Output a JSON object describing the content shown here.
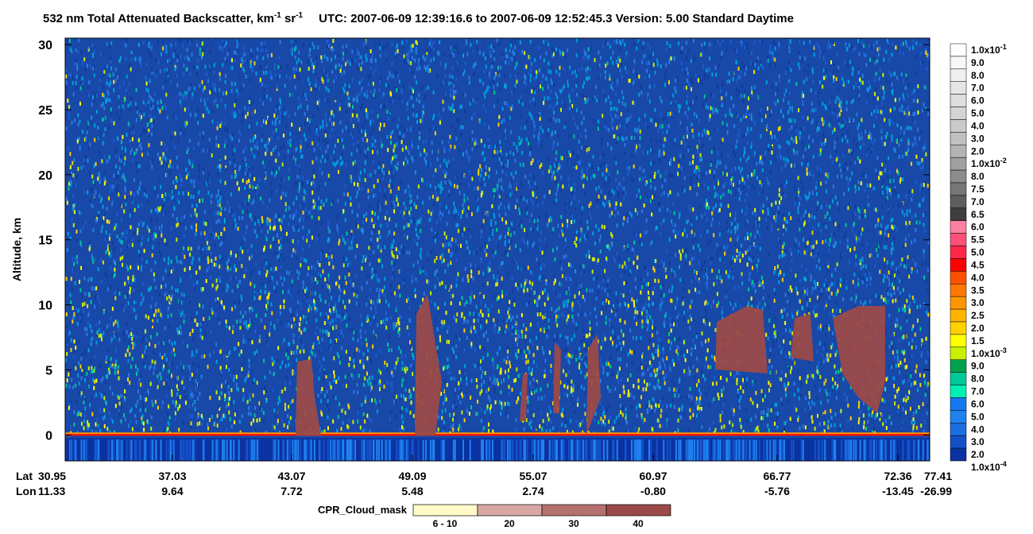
{
  "chart_data": {
    "type": "heatmap",
    "title": {
      "text1": "532 nm Total Attenuated Backscatter, km",
      "sup1": "-1",
      "text2": " sr",
      "sup2": "-1",
      "text3": "UTC:  2007-06-09 12:39:16.6  to  2007-06-09 12:52:45.3    Version: 5.00  Standard  Daytime"
    },
    "y_label": "Altitude, km",
    "ylim": [
      -2,
      30.5
    ],
    "yticks": [
      0,
      5,
      10,
      15,
      20,
      25,
      30
    ],
    "x_row_labels": [
      "Lat",
      "Lon"
    ],
    "lat": [
      "30.95",
      "37.03",
      "43.07",
      "49.09",
      "55.07",
      "60.97",
      "66.77",
      "72.36",
      "77.41"
    ],
    "lon": [
      "11.33",
      "9.64",
      "7.72",
      "5.48",
      "2.74",
      "-0.80",
      "-5.76",
      "-13.45",
      "-26.99"
    ],
    "colorbar": {
      "labels": [
        {
          "text": "1.0x10",
          "sup": "-1"
        },
        "9.0",
        "8.0",
        "7.0",
        "6.0",
        "5.0",
        "4.0",
        "3.0",
        "2.0",
        {
          "text": "1.0x10",
          "sup": "-2"
        },
        "8.0",
        "7.5",
        "7.0",
        "6.5",
        "6.0",
        "5.5",
        "5.0",
        "4.5",
        "4.0",
        "3.5",
        "3.0",
        "2.5",
        "2.0",
        "1.5",
        {
          "text": "1.0x10",
          "sup": "-3"
        },
        "9.0",
        "8.0",
        "7.0",
        "6.0",
        "5.0",
        "4.0",
        "3.0",
        "2.0",
        {
          "text": "1.0x10",
          "sup": "-4"
        }
      ],
      "colors": [
        "#ffffff",
        "#f7f7f7",
        "#efefef",
        "#e6e6e6",
        "#dedede",
        "#d4d4d4",
        "#cacaca",
        "#c0c0c0",
        "#b4b4b4",
        "#a0a0a0",
        "#8c8c8c",
        "#767676",
        "#5e5e5e",
        "#3e3e3e",
        "#ff80a0",
        "#ff5078",
        "#ff2848",
        "#ff0000",
        "#ff5000",
        "#ff7800",
        "#ff9600",
        "#ffb400",
        "#ffd200",
        "#ffff00",
        "#c8f000",
        "#00a050",
        "#00c896",
        "#00f0b4",
        "#1478f0",
        "#1e82f0",
        "#1a6ee0",
        "#1450c8",
        "#0a32a0"
      ]
    },
    "cloud_mask": {
      "label": "CPR_Cloud_mask",
      "categories": [
        "6 - 10",
        "20",
        "30",
        "40"
      ],
      "colors": [
        "#fffac8",
        "#d8a8a4",
        "#b5716e",
        "#9a4a48"
      ]
    }
  }
}
